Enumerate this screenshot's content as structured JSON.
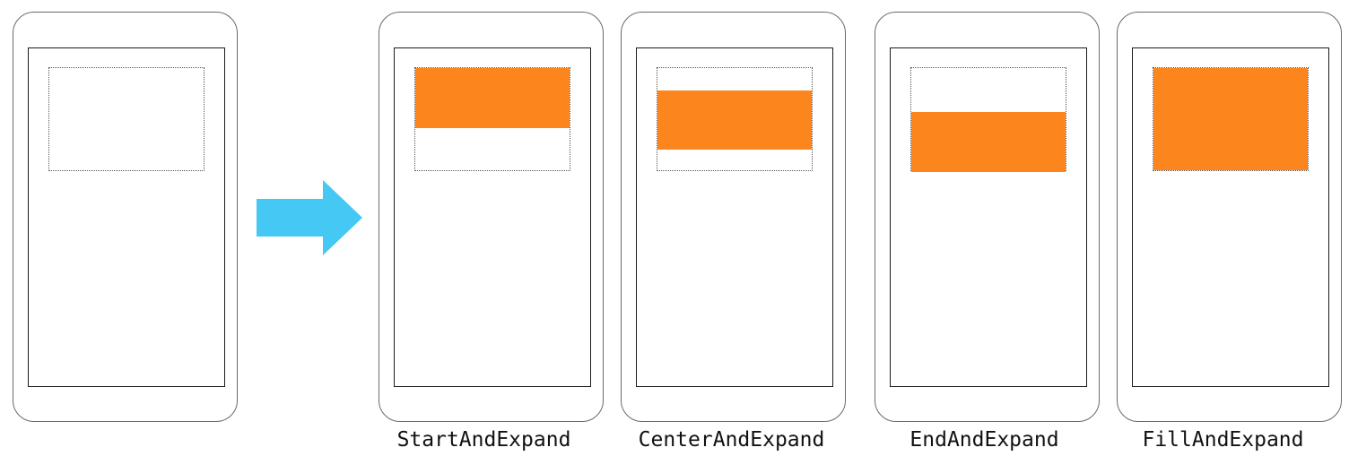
{
  "colors": {
    "layout_box": "#fc851e",
    "arrow": "#45c8f3"
  },
  "arrow_icon": "right-arrow-icon",
  "layouts": [
    {
      "caption": "StartAndExpand"
    },
    {
      "caption": "CenterAndExpand"
    },
    {
      "caption": "EndAndExpand"
    },
    {
      "caption": "FillAndExpand"
    }
  ]
}
